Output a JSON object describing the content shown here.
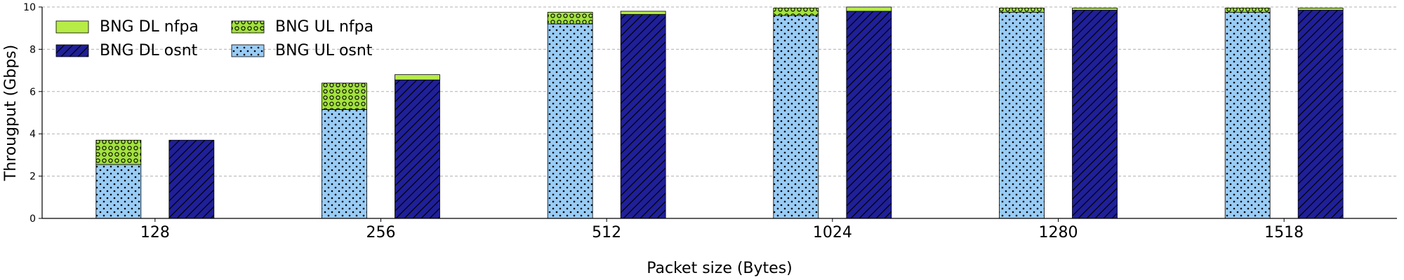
{
  "chart_data": {
    "type": "bar",
    "stacked_groups": true,
    "categories": [
      "128",
      "256",
      "512",
      "1024",
      "1280",
      "1518"
    ],
    "xlabel": "Packet size (Bytes)",
    "ylabel": "Througput (Gbps)",
    "ylim": [
      0,
      10
    ],
    "yticks": [
      0,
      2,
      4,
      6,
      8,
      10
    ],
    "grid": true,
    "legend_position": "top-left",
    "series": [
      {
        "name": "BNG UL osnt",
        "stack": "UL",
        "color": "#99ccf5",
        "pattern": "dots",
        "values": [
          2.55,
          5.15,
          9.2,
          9.6,
          9.75,
          9.75
        ]
      },
      {
        "name": "BNG UL nfpa",
        "stack": "UL",
        "color": "#a3e23e",
        "pattern": "circles",
        "values": [
          1.15,
          1.25,
          0.55,
          0.35,
          0.2,
          0.2
        ]
      },
      {
        "name": "BNG DL osnt",
        "stack": "DL",
        "color": "#1f1f99",
        "pattern": "hatch",
        "values": [
          3.7,
          6.55,
          9.65,
          9.8,
          9.85,
          9.85
        ]
      },
      {
        "name": "BNG DL nfpa",
        "stack": "DL",
        "color": "#b7ec46",
        "pattern": "solid",
        "values": [
          0.0,
          0.25,
          0.15,
          0.2,
          0.1,
          0.1
        ]
      }
    ],
    "legend": [
      {
        "name": "BNG DL nfpa",
        "series_index": 3
      },
      {
        "name": "BNG DL osnt",
        "series_index": 2
      },
      {
        "name": "BNG UL nfpa",
        "series_index": 1
      },
      {
        "name": "BNG UL osnt",
        "series_index": 0
      }
    ]
  }
}
